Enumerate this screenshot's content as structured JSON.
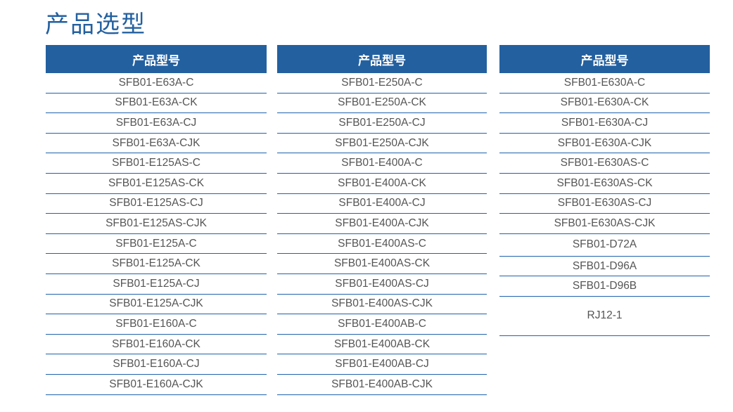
{
  "title": "产品选型",
  "colors": {
    "accent": "#2360a0",
    "text": "#555555"
  },
  "columns": [
    {
      "header": "产品型号",
      "items": [
        "SFB01-E63A-C",
        "SFB01-E63A-CK",
        "SFB01-E63A-CJ",
        "SFB01-E63A-CJK",
        "SFB01-E125AS-C",
        "SFB01-E125AS-CK",
        "SFB01-E125AS-CJ",
        "SFB01-E125AS-CJK",
        "SFB01-E125A-C",
        "SFB01-E125A-CK",
        "SFB01-E125A-CJ",
        "SFB01-E125A-CJK",
        "SFB01-E160A-C",
        "SFB01-E160A-CK",
        "SFB01-E160A-CJ",
        "SFB01-E160A-CJK"
      ]
    },
    {
      "header": "产品型号",
      "items": [
        "SFB01-E250A-C",
        "SFB01-E250A-CK",
        "SFB01-E250A-CJ",
        "SFB01-E250A-CJK",
        "SFB01-E400A-C",
        "SFB01-E400A-CK",
        "SFB01-E400A-CJ",
        "SFB01-E400A-CJK",
        "SFB01-E400AS-C",
        "SFB01-E400AS-CK",
        "SFB01-E400AS-CJ",
        "SFB01-E400AS-CJK",
        "SFB01-E400AB-C",
        "SFB01-E400AB-CK",
        "SFB01-E400AB-CJ",
        "SFB01-E400AB-CJK"
      ]
    },
    {
      "header": "产品型号",
      "items": [
        "SFB01-E630A-C",
        "SFB01-E630A-CK",
        "SFB01-E630A-CJ",
        "SFB01-E630A-CJK",
        "SFB01-E630AS-C",
        "SFB01-E630AS-CK",
        "SFB01-E630AS-CJ",
        "SFB01-E630AS-CJK",
        "SFB01-D72A",
        "SFB01-D96A",
        "SFB01-D96B",
        "RJ12-1"
      ]
    }
  ]
}
